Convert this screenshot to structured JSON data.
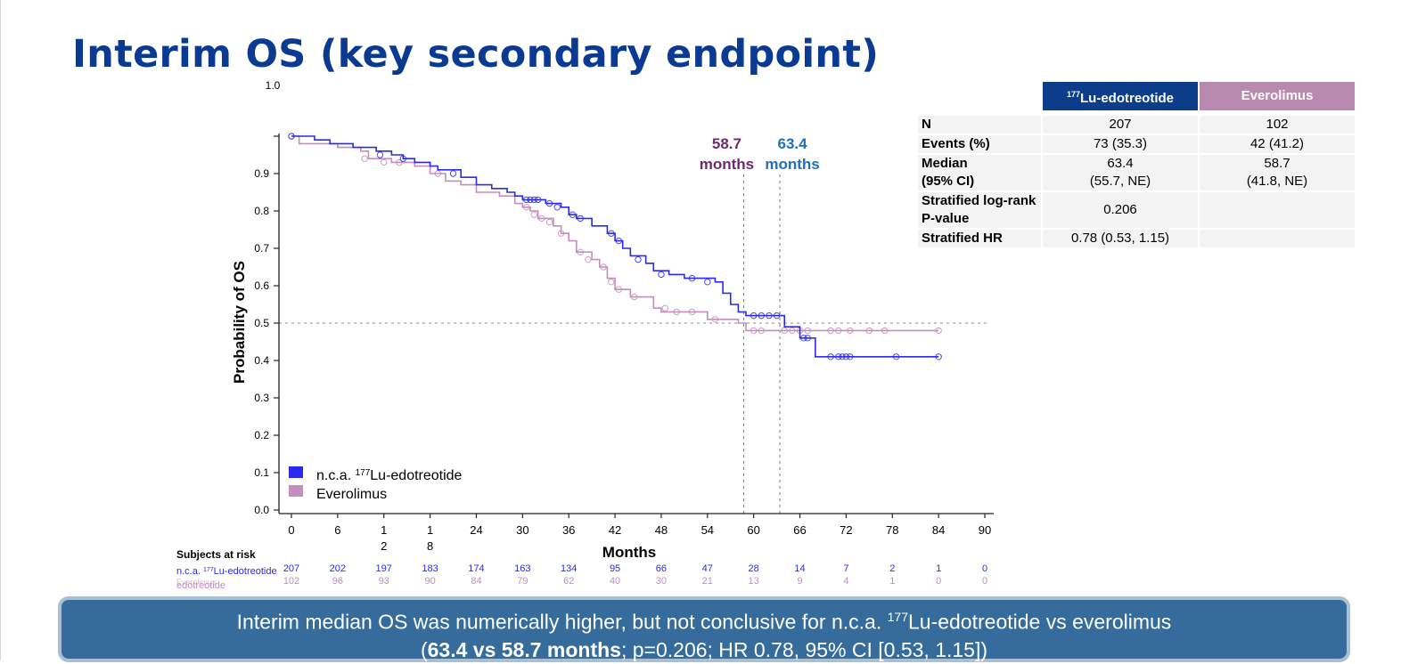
{
  "slide": {
    "title": "Interim OS (key secondary endpoint)"
  },
  "colors": {
    "lu": "#2a2af0",
    "everolimus": "#c38dbe",
    "median_lu": "#1f6fbf",
    "median_ev": "#6e2a6e",
    "table_header_lu": "#0b3d8a",
    "table_header_ev": "#b98aaf",
    "banner": "#356c9b"
  },
  "table": {
    "header_lu_sup": "177",
    "header_lu": "Lu-edotreotide",
    "header_ev": "Everolimus",
    "rows": [
      {
        "label": "N",
        "lu": "207",
        "ev": "102"
      },
      {
        "label": "Events (%)",
        "lu": "73 (35.3)",
        "ev": "42 (41.2)"
      },
      {
        "label": "Median",
        "label2": "(95% CI)",
        "lu": "63.4",
        "lu2": "(55.7, NE)",
        "ev": "58.7",
        "ev2": "(41.8, NE)"
      },
      {
        "label": "Stratified log-rank",
        "label2": "P-value",
        "lu": "0.206",
        "ev": ""
      },
      {
        "label": "Stratified HR",
        "lu": "0.78 (0.53, 1.15)",
        "ev": ""
      }
    ]
  },
  "banner": {
    "line1_pre": "Interim median OS was numerically higher, but not conclusive for n.c.a. ",
    "line1_sup": "177",
    "line1_post": "Lu-edotreotide vs everolimus",
    "line2_open": "(",
    "line2_bold": "63.4 vs 58.7 months",
    "line2_rest": ";  p=0.206; HR 0.78, 95% CI [0.53, 1.15])"
  },
  "chart_data": {
    "type": "line",
    "subtype": "kaplan-meier",
    "xlabel": "Months",
    "ylabel": "Probability of OS",
    "xlim": [
      0,
      90
    ],
    "ylim": [
      0,
      1.0
    ],
    "x_ticks": [
      "0",
      "6",
      "1\n2",
      "1\n8",
      "24",
      "30",
      "36",
      "42",
      "48",
      "54",
      "60",
      "66",
      "72",
      "78",
      "84",
      "90"
    ],
    "y_ticks": [
      "0.0",
      "0.1",
      "0.2",
      "0.3",
      "0.4",
      "0.5",
      "0.6",
      "0.7",
      "0.8",
      "0.9",
      "1.0"
    ],
    "reference_line_y": 0.5,
    "legend_position": "bottom-left",
    "legend": [
      {
        "pre": "n.c.a. ",
        "sup": "177",
        "post": "Lu-edotreotide"
      },
      {
        "pre": "Everolimus",
        "sup": "",
        "post": ""
      }
    ],
    "medians": [
      {
        "series": "Everolimus",
        "x": 58.7,
        "value": "58.7",
        "unit": "months"
      },
      {
        "series": "n.c.a. 177Lu-edotreotide",
        "x": 63.4,
        "value": "63.4",
        "unit": "months"
      }
    ],
    "series": [
      {
        "name": "n.c.a. 177Lu-edotreotide",
        "steps": [
          [
            0,
            1.0
          ],
          [
            3,
            0.99
          ],
          [
            5,
            0.98
          ],
          [
            8,
            0.97
          ],
          [
            11,
            0.96
          ],
          [
            13,
            0.95
          ],
          [
            14.5,
            0.94
          ],
          [
            16,
            0.93
          ],
          [
            18,
            0.92
          ],
          [
            19,
            0.91
          ],
          [
            22,
            0.89
          ],
          [
            24,
            0.87
          ],
          [
            26,
            0.86
          ],
          [
            28,
            0.85
          ],
          [
            29,
            0.84
          ],
          [
            30,
            0.83
          ],
          [
            33,
            0.82
          ],
          [
            35,
            0.81
          ],
          [
            36,
            0.79
          ],
          [
            37,
            0.78
          ],
          [
            39,
            0.76
          ],
          [
            41,
            0.74
          ],
          [
            42,
            0.72
          ],
          [
            43,
            0.7
          ],
          [
            44,
            0.68
          ],
          [
            46,
            0.66
          ],
          [
            47,
            0.64
          ],
          [
            49,
            0.63
          ],
          [
            51,
            0.62
          ],
          [
            55,
            0.61
          ],
          [
            56,
            0.58
          ],
          [
            57,
            0.55
          ],
          [
            58,
            0.53
          ],
          [
            59,
            0.52
          ],
          [
            64,
            0.49
          ],
          [
            66,
            0.46
          ],
          [
            68,
            0.41
          ],
          [
            84,
            0.41
          ]
        ],
        "censored": [
          [
            0,
            1.0
          ],
          [
            11.5,
            0.95
          ],
          [
            14.5,
            0.94
          ],
          [
            21,
            0.9
          ],
          [
            30.5,
            0.83
          ],
          [
            31,
            0.83
          ],
          [
            31.5,
            0.83
          ],
          [
            32,
            0.83
          ],
          [
            33.5,
            0.82
          ],
          [
            34.5,
            0.81
          ],
          [
            36.5,
            0.79
          ],
          [
            37.5,
            0.78
          ],
          [
            41.5,
            0.74
          ],
          [
            42.5,
            0.72
          ],
          [
            45,
            0.67
          ],
          [
            48,
            0.63
          ],
          [
            52,
            0.62
          ],
          [
            54,
            0.61
          ],
          [
            60,
            0.52
          ],
          [
            61,
            0.52
          ],
          [
            62,
            0.52
          ],
          [
            63,
            0.52
          ],
          [
            66.5,
            0.46
          ],
          [
            67,
            0.46
          ],
          [
            70,
            0.41
          ],
          [
            71,
            0.41
          ],
          [
            71.5,
            0.41
          ],
          [
            72,
            0.41
          ],
          [
            72.5,
            0.41
          ],
          [
            78.5,
            0.41
          ],
          [
            84,
            0.41
          ]
        ],
        "at_risk": [
          207,
          202,
          197,
          183,
          174,
          163,
          134,
          95,
          66,
          47,
          28,
          14,
          7,
          2,
          1,
          0
        ]
      },
      {
        "name": "Everolimus",
        "steps": [
          [
            0,
            1.0
          ],
          [
            1,
            0.98
          ],
          [
            6,
            0.97
          ],
          [
            9,
            0.96
          ],
          [
            10,
            0.94
          ],
          [
            13,
            0.93
          ],
          [
            16,
            0.92
          ],
          [
            18,
            0.9
          ],
          [
            20,
            0.88
          ],
          [
            22,
            0.87
          ],
          [
            24,
            0.85
          ],
          [
            27,
            0.84
          ],
          [
            29,
            0.82
          ],
          [
            30,
            0.81
          ],
          [
            31,
            0.8
          ],
          [
            32,
            0.78
          ],
          [
            34,
            0.76
          ],
          [
            35,
            0.74
          ],
          [
            36,
            0.72
          ],
          [
            37,
            0.69
          ],
          [
            39,
            0.67
          ],
          [
            40,
            0.65
          ],
          [
            41,
            0.62
          ],
          [
            42,
            0.59
          ],
          [
            44,
            0.57
          ],
          [
            47,
            0.54
          ],
          [
            48,
            0.53
          ],
          [
            52,
            0.53
          ],
          [
            54,
            0.51
          ],
          [
            58,
            0.5
          ],
          [
            59,
            0.48
          ],
          [
            84,
            0.48
          ]
        ],
        "censored": [
          [
            0,
            1.0
          ],
          [
            9.5,
            0.94
          ],
          [
            12,
            0.93
          ],
          [
            14,
            0.93
          ],
          [
            19,
            0.9
          ],
          [
            30.5,
            0.81
          ],
          [
            31.5,
            0.79
          ],
          [
            32.5,
            0.78
          ],
          [
            33.5,
            0.77
          ],
          [
            35,
            0.74
          ],
          [
            37.5,
            0.69
          ],
          [
            38.5,
            0.67
          ],
          [
            40.5,
            0.65
          ],
          [
            41.5,
            0.61
          ],
          [
            42.5,
            0.59
          ],
          [
            44.5,
            0.57
          ],
          [
            48.5,
            0.54
          ],
          [
            50,
            0.53
          ],
          [
            52,
            0.53
          ],
          [
            55,
            0.51
          ],
          [
            60,
            0.48
          ],
          [
            61,
            0.48
          ],
          [
            64,
            0.48
          ],
          [
            65,
            0.48
          ],
          [
            66,
            0.48
          ],
          [
            67,
            0.48
          ],
          [
            70,
            0.48
          ],
          [
            71,
            0.48
          ],
          [
            72.5,
            0.48
          ],
          [
            75,
            0.48
          ],
          [
            77,
            0.48
          ],
          [
            84,
            0.48
          ]
        ],
        "at_risk": [
          102,
          96,
          93,
          90,
          84,
          79,
          62,
          40,
          30,
          21,
          13,
          9,
          4,
          1,
          0,
          0
        ]
      }
    ],
    "at_risk_title": "Subjects at risk",
    "at_risk_label_lu": {
      "pre": "n.c.a. ",
      "sup": "177",
      "post": "Lu-edotreotide"
    },
    "at_risk_label_ev": "Everolimus"
  }
}
